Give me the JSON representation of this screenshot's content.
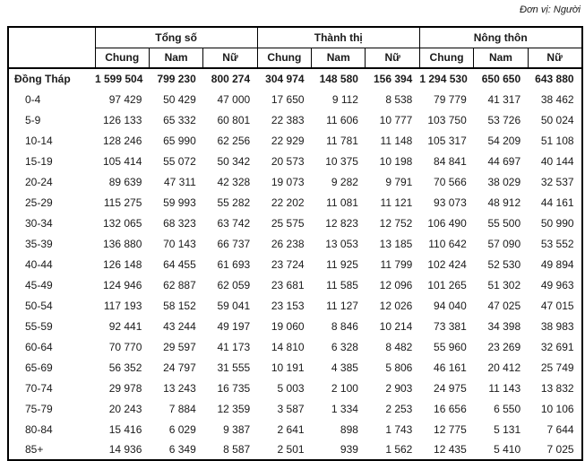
{
  "meta": {
    "unit_label": "Đơn vị: Người"
  },
  "table": {
    "col_groups": [
      {
        "label": "Tổng số"
      },
      {
        "label": "Thành thị"
      },
      {
        "label": "Nông thôn"
      }
    ],
    "sub_headers": [
      "Chung",
      "Nam",
      "Nữ",
      "Chung",
      "Nam",
      "Nữ",
      "Chung",
      "Nam",
      "Nữ"
    ],
    "rows": [
      {
        "label": "Đồng Tháp",
        "bold": true,
        "values": [
          "1 599 504",
          "799 230",
          "800 274",
          "304 974",
          "148 580",
          "156 394",
          "1 294 530",
          "650 650",
          "643 880"
        ]
      },
      {
        "label": "0-4",
        "values": [
          "97 429",
          "50 429",
          "47 000",
          "17 650",
          "9 112",
          "8 538",
          "79 779",
          "41 317",
          "38 462"
        ]
      },
      {
        "label": "5-9",
        "values": [
          "126 133",
          "65 332",
          "60 801",
          "22 383",
          "11 606",
          "10 777",
          "103 750",
          "53 726",
          "50 024"
        ]
      },
      {
        "label": "10-14",
        "values": [
          "128 246",
          "65 990",
          "62 256",
          "22 929",
          "11 781",
          "11 148",
          "105 317",
          "54 209",
          "51 108"
        ]
      },
      {
        "label": "15-19",
        "values": [
          "105 414",
          "55 072",
          "50 342",
          "20 573",
          "10 375",
          "10 198",
          "84 841",
          "44 697",
          "40 144"
        ]
      },
      {
        "label": "20-24",
        "values": [
          "89 639",
          "47 311",
          "42 328",
          "19 073",
          "9 282",
          "9 791",
          "70 566",
          "38 029",
          "32 537"
        ]
      },
      {
        "label": "25-29",
        "values": [
          "115 275",
          "59 993",
          "55 282",
          "22 202",
          "11 081",
          "11 121",
          "93 073",
          "48 912",
          "44 161"
        ]
      },
      {
        "label": "30-34",
        "values": [
          "132 065",
          "68 323",
          "63 742",
          "25 575",
          "12 823",
          "12 752",
          "106 490",
          "55 500",
          "50 990"
        ]
      },
      {
        "label": "35-39",
        "values": [
          "136 880",
          "70 143",
          "66 737",
          "26 238",
          "13 053",
          "13 185",
          "110 642",
          "57 090",
          "53 552"
        ]
      },
      {
        "label": "40-44",
        "values": [
          "126 148",
          "64 455",
          "61 693",
          "23 724",
          "11 925",
          "11 799",
          "102 424",
          "52 530",
          "49 894"
        ]
      },
      {
        "label": "45-49",
        "values": [
          "124 946",
          "62 887",
          "62 059",
          "23 681",
          "11 585",
          "12 096",
          "101 265",
          "51 302",
          "49 963"
        ]
      },
      {
        "label": "50-54",
        "values": [
          "117 193",
          "58 152",
          "59 041",
          "23 153",
          "11 127",
          "12 026",
          "94 040",
          "47 025",
          "47 015"
        ]
      },
      {
        "label": "55-59",
        "values": [
          "92 441",
          "43 244",
          "49 197",
          "19 060",
          "8 846",
          "10 214",
          "73 381",
          "34 398",
          "38 983"
        ]
      },
      {
        "label": "60-64",
        "values": [
          "70 770",
          "29 597",
          "41 173",
          "14 810",
          "6 328",
          "8 482",
          "55 960",
          "23 269",
          "32 691"
        ]
      },
      {
        "label": "65-69",
        "values": [
          "56 352",
          "24 797",
          "31 555",
          "10 191",
          "4 385",
          "5 806",
          "46 161",
          "20 412",
          "25 749"
        ]
      },
      {
        "label": "70-74",
        "values": [
          "29 978",
          "13 243",
          "16 735",
          "5 003",
          "2 100",
          "2 903",
          "24 975",
          "11 143",
          "13 832"
        ]
      },
      {
        "label": "75-79",
        "values": [
          "20 243",
          "7 884",
          "12 359",
          "3 587",
          "1 334",
          "2 253",
          "16 656",
          "6 550",
          "10 106"
        ]
      },
      {
        "label": "80-84",
        "values": [
          "15 416",
          "6 029",
          "9 387",
          "2 641",
          "898",
          "1 743",
          "12 775",
          "5 131",
          "7 644"
        ]
      },
      {
        "label": "85+",
        "values": [
          "14 936",
          "6 349",
          "8 587",
          "2 501",
          "939",
          "1 562",
          "12 435",
          "5 410",
          "7 025"
        ]
      }
    ]
  }
}
